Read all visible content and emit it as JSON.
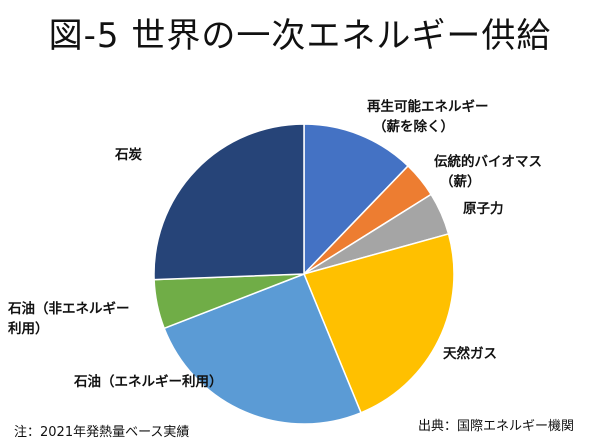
{
  "title": "図-5 世界の一次エネルギー供給",
  "note": "注：2021年発熱量ベース実績",
  "source": "出典：国際エネルギー機関",
  "chart_data": {
    "type": "pie",
    "start_angle_deg": 0,
    "direction": "clockwise",
    "slices": [
      {
        "label": [
          "再生可能エネルギー",
          "（薪を除く）"
        ],
        "value": 12.2,
        "color": "#4472C4"
      },
      {
        "label": [
          "伝統的バイオマス",
          "（薪）"
        ],
        "value": 3.9,
        "color": "#ED7D31"
      },
      {
        "label": [
          "原子力"
        ],
        "value": 4.6,
        "color": "#A5A5A5"
      },
      {
        "label": [
          "天然ガス"
        ],
        "value": 23.1,
        "color": "#FFC000"
      },
      {
        "label": [
          "石油（エネルギー利用）"
        ],
        "value": 25.3,
        "color": "#5B9BD5"
      },
      {
        "label": [
          "石油（非エネルギー",
          "利用）"
        ],
        "value": 5.3,
        "color": "#70AD47"
      },
      {
        "label": [
          "石炭"
        ],
        "value": 25.6,
        "color": "#264478"
      }
    ]
  }
}
